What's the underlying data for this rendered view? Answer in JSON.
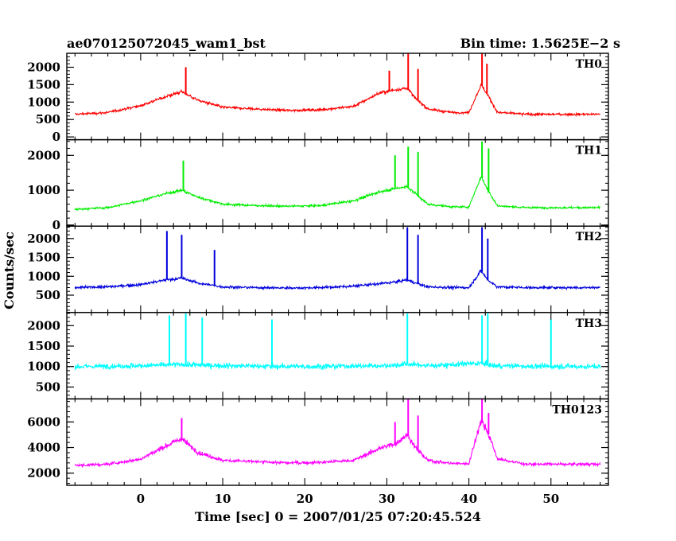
{
  "chart_data": {
    "type": "line",
    "title_left": "ae070125072045_wam1_bst",
    "title_right": "Bin time: 1.5625E−2 s",
    "xlabel": "Time [sec] 0 = 2007/01/25 07:20:45.524",
    "ylabel": "Counts/sec",
    "xlim": [
      -9,
      57
    ],
    "x_ticks": [
      0,
      10,
      20,
      30,
      40,
      50
    ],
    "x_tick_labels": [
      "0",
      "10",
      "20",
      "30",
      "40",
      "50"
    ],
    "data_range": [
      -8,
      56
    ],
    "grid": false,
    "panels": [
      {
        "name": "TH0",
        "color": "#ff0000",
        "ylim": [
          -80,
          2400
        ],
        "y_ticks": [
          0,
          500,
          1000,
          1500,
          2000
        ],
        "y_tick_labels": [
          "0",
          "500",
          "1000",
          "1500",
          "2000"
        ],
        "envelope": [
          [
            -8,
            650
          ],
          [
            -4,
            700
          ],
          [
            0,
            900
          ],
          [
            3,
            1150
          ],
          [
            5,
            1300
          ],
          [
            7,
            1050
          ],
          [
            10,
            850
          ],
          [
            14,
            800
          ],
          [
            18,
            760
          ],
          [
            22,
            780
          ],
          [
            26,
            880
          ],
          [
            29,
            1250
          ],
          [
            31,
            1350
          ],
          [
            32.5,
            1400
          ],
          [
            33.5,
            1100
          ],
          [
            35,
            800
          ],
          [
            38,
            700
          ],
          [
            40,
            700
          ],
          [
            41.5,
            1500
          ],
          [
            42.3,
            1200
          ],
          [
            43.5,
            700
          ],
          [
            47,
            650
          ],
          [
            51,
            650
          ],
          [
            56,
            650
          ]
        ],
        "spikes": [
          [
            5.5,
            2000
          ],
          [
            30.3,
            1900
          ],
          [
            32.6,
            2400
          ],
          [
            33.8,
            1950
          ],
          [
            41.6,
            2400
          ],
          [
            42.2,
            2100
          ]
        ]
      },
      {
        "name": "TH1",
        "color": "#00ee00",
        "ylim": [
          -30,
          2450
        ],
        "y_ticks": [
          0,
          1000,
          2000
        ],
        "y_tick_labels": [
          "0",
          "1000",
          "2000"
        ],
        "envelope": [
          [
            -8,
            450
          ],
          [
            -4,
            500
          ],
          [
            0,
            700
          ],
          [
            3,
            900
          ],
          [
            5,
            1000
          ],
          [
            7,
            800
          ],
          [
            10,
            600
          ],
          [
            14,
            560
          ],
          [
            18,
            540
          ],
          [
            22,
            560
          ],
          [
            26,
            700
          ],
          [
            29,
            950
          ],
          [
            31,
            1050
          ],
          [
            32.5,
            1100
          ],
          [
            33.5,
            900
          ],
          [
            35,
            600
          ],
          [
            38,
            520
          ],
          [
            40,
            520
          ],
          [
            41.5,
            1400
          ],
          [
            42.3,
            1000
          ],
          [
            43.5,
            550
          ],
          [
            47,
            500
          ],
          [
            51,
            500
          ],
          [
            56,
            500
          ]
        ],
        "spikes": [
          [
            5.2,
            1850
          ],
          [
            31,
            2000
          ],
          [
            32.6,
            2250
          ],
          [
            33.8,
            2100
          ],
          [
            41.6,
            2400
          ],
          [
            42.4,
            2200
          ]
        ]
      },
      {
        "name": "TH2",
        "color": "#0000dd",
        "ylim": [
          40,
          2330
        ],
        "y_ticks": [
          500,
          1000,
          1500,
          2000
        ],
        "y_tick_labels": [
          "500",
          "1000",
          "1500",
          "2000"
        ],
        "envelope": [
          [
            -8,
            700
          ],
          [
            -4,
            720
          ],
          [
            0,
            780
          ],
          [
            3,
            900
          ],
          [
            5,
            950
          ],
          [
            7,
            820
          ],
          [
            10,
            720
          ],
          [
            14,
            700
          ],
          [
            18,
            690
          ],
          [
            22,
            700
          ],
          [
            26,
            740
          ],
          [
            29,
            800
          ],
          [
            31,
            850
          ],
          [
            32.5,
            900
          ],
          [
            33.5,
            820
          ],
          [
            35,
            720
          ],
          [
            38,
            700
          ],
          [
            40,
            700
          ],
          [
            41.5,
            1150
          ],
          [
            42.3,
            900
          ],
          [
            43.5,
            720
          ],
          [
            47,
            700
          ],
          [
            51,
            700
          ],
          [
            56,
            700
          ]
        ],
        "spikes": [
          [
            3.2,
            2200
          ],
          [
            5,
            2100
          ],
          [
            9,
            1700
          ],
          [
            32.5,
            2300
          ],
          [
            33.8,
            2100
          ],
          [
            41.6,
            2300
          ],
          [
            42.3,
            2000
          ]
        ]
      },
      {
        "name": "TH3",
        "color": "#00ffff",
        "ylim": [
          210,
          2320
        ],
        "y_ticks": [
          500,
          1000,
          1500,
          2000
        ],
        "y_tick_labels": [
          "500",
          "1000",
          "1500",
          "2000"
        ],
        "envelope": [
          [
            -8,
            1000
          ],
          [
            0,
            1020
          ],
          [
            5,
            1050
          ],
          [
            10,
            1020
          ],
          [
            20,
            1000
          ],
          [
            30,
            1020
          ],
          [
            32.5,
            1060
          ],
          [
            35,
            1020
          ],
          [
            41.5,
            1080
          ],
          [
            43,
            1020
          ],
          [
            50,
            1000
          ],
          [
            56,
            1000
          ]
        ],
        "spikes": [
          [
            3.5,
            2250
          ],
          [
            5.5,
            2300
          ],
          [
            7.5,
            2200
          ],
          [
            16,
            2150
          ],
          [
            32.5,
            2300
          ],
          [
            41.6,
            2250
          ],
          [
            42.3,
            2300
          ],
          [
            50,
            2150
          ]
        ]
      },
      {
        "name": "TH0123",
        "color": "#ff00ff",
        "ylim": [
          1050,
          7800
        ],
        "y_ticks": [
          2000,
          4000,
          6000
        ],
        "y_tick_labels": [
          "2000",
          "4000",
          "6000"
        ],
        "envelope": [
          [
            -8,
            2600
          ],
          [
            -4,
            2700
          ],
          [
            0,
            3100
          ],
          [
            3,
            4100
          ],
          [
            5,
            4700
          ],
          [
            7,
            3600
          ],
          [
            10,
            3000
          ],
          [
            14,
            2900
          ],
          [
            18,
            2800
          ],
          [
            22,
            2850
          ],
          [
            26,
            3000
          ],
          [
            29,
            3900
          ],
          [
            31,
            4300
          ],
          [
            32.5,
            5000
          ],
          [
            33.5,
            4000
          ],
          [
            35,
            3000
          ],
          [
            38,
            2750
          ],
          [
            40,
            2750
          ],
          [
            41.5,
            6200
          ],
          [
            42.3,
            5200
          ],
          [
            43.5,
            3100
          ],
          [
            47,
            2700
          ],
          [
            51,
            2700
          ],
          [
            56,
            2700
          ]
        ],
        "spikes": [
          [
            5,
            6300
          ],
          [
            31,
            6000
          ],
          [
            32.6,
            7800
          ],
          [
            33.8,
            6500
          ],
          [
            41.6,
            7800
          ],
          [
            42.4,
            6700
          ]
        ]
      }
    ]
  }
}
